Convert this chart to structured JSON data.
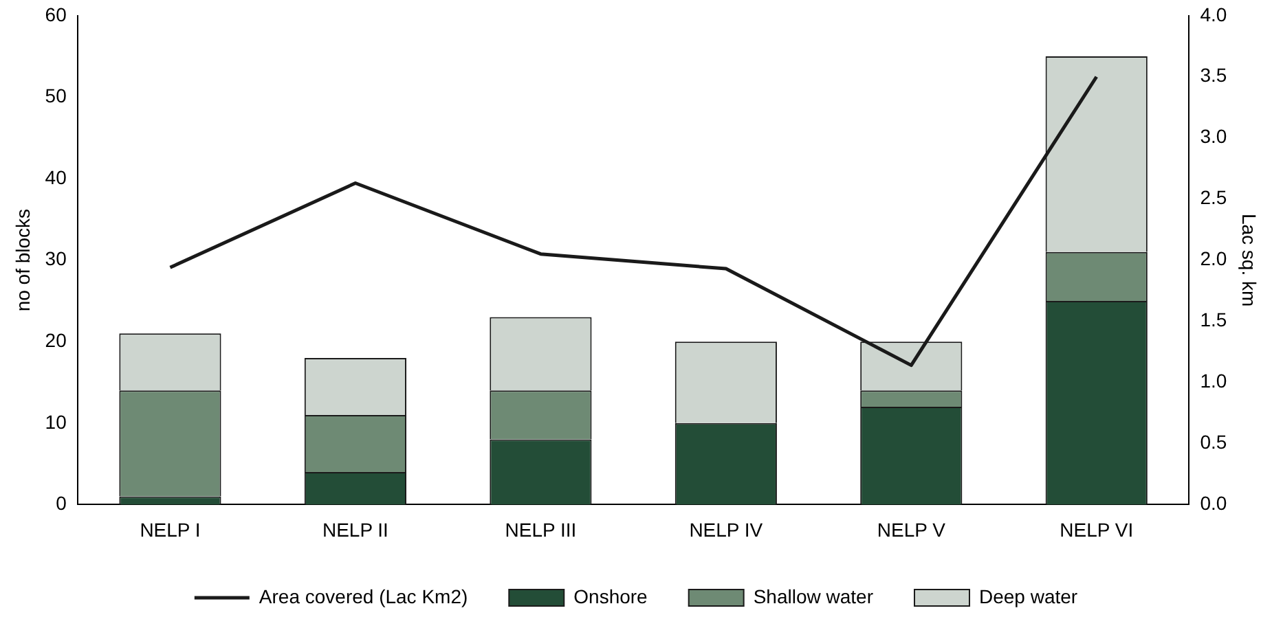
{
  "chart_data": {
    "type": "bar",
    "stacked": true,
    "categories": [
      "NELP I",
      "NELP II",
      "NELP III",
      "NELP IV",
      "NELP V",
      "NELP VI"
    ],
    "ylabel": "no of blocks",
    "y2label": "Lac sq. km",
    "ylim": [
      0,
      60
    ],
    "yticks": [
      0,
      10,
      20,
      30,
      40,
      50,
      60
    ],
    "y2lim": [
      0,
      4
    ],
    "y2ticks": [
      {
        "value": 0,
        "label": "0.0"
      },
      {
        "value": 0.5,
        "label": "0.5"
      },
      {
        "value": 1,
        "label": "1.0"
      },
      {
        "value": 1.5,
        "label": "1.5"
      },
      {
        "value": 2,
        "label": "2.0"
      },
      {
        "value": 2.5,
        "label": "2.5"
      },
      {
        "value": 3,
        "label": "3.0"
      },
      {
        "value": 3.5,
        "label": "3.5"
      },
      {
        "value": 4,
        "label": "4.0"
      }
    ],
    "legend": "bottom",
    "grid": false,
    "series": [
      {
        "name": "Onshore",
        "color": "#234d37",
        "values": [
          1,
          4,
          8,
          10,
          12,
          25
        ]
      },
      {
        "name": "Shallow water",
        "color": "#6e8a74",
        "values": [
          13,
          7,
          6,
          0,
          2,
          6
        ]
      },
      {
        "name": "Deep water",
        "color": "#cdd5cf",
        "values": [
          7,
          7,
          9,
          10,
          6,
          24
        ]
      },
      {
        "name": "Area covered (Lac Km2)",
        "type": "line",
        "axis": "y2",
        "color": "#1a1a1a",
        "marker": "none",
        "line_style": "solid",
        "values": [
          1.94,
          2.63,
          2.05,
          1.93,
          1.14,
          3.5
        ]
      }
    ]
  }
}
